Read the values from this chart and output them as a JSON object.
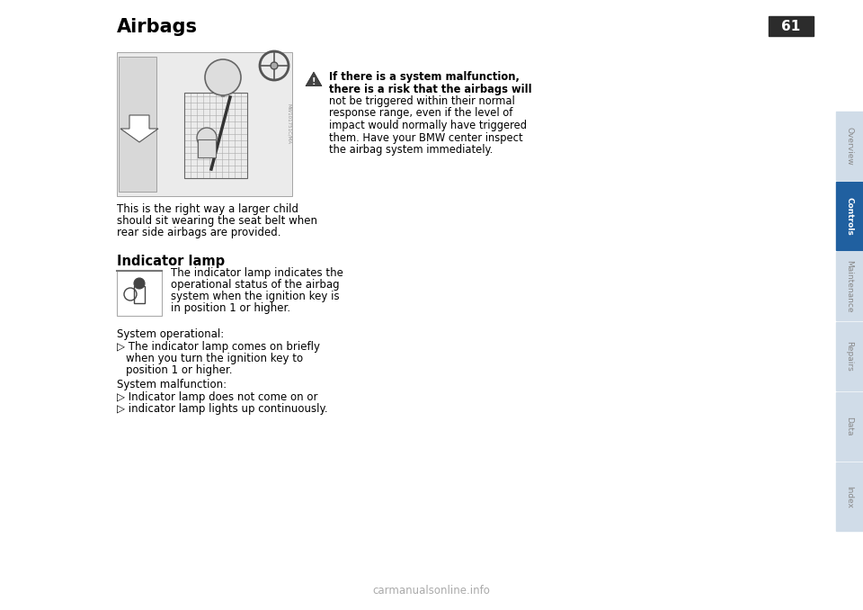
{
  "title": "Airbags",
  "page_number": "61",
  "background_color": "#ffffff",
  "title_fontsize": 15,
  "body_fontsize": 8.5,
  "sidebar_labels": [
    "Overview",
    "Controls",
    "Maintenance",
    "Repairs",
    "Data",
    "Index"
  ],
  "sidebar_active": 1,
  "sidebar_active_color": "#2060a0",
  "sidebar_inactive_color": "#d0dce8",
  "sidebar_active_text_color": "#ffffff",
  "sidebar_inactive_text_color": "#888888",
  "page_number_bg": "#2c2c2c",
  "page_number_color": "#ffffff",
  "warning_text_line1": "If there is a system malfunction,",
  "warning_text_line2": "there is a risk that the airbags will",
  "warning_text_line3": "not be triggered within their normal",
  "warning_text_line4": "response range, even if the level of",
  "warning_text_line5": "impact would normally have triggered",
  "warning_text_line6": "them. Have your BMW center inspect",
  "warning_text_line7": "the airbag system immediately.",
  "caption_line1": "This is the right way a larger child",
  "caption_line2": "should sit wearing the seat belt when",
  "caption_line3": "rear side airbags are provided.",
  "section_title": "Indicator lamp",
  "indicator_line1": "    The indicator lamp indicates the",
  "indicator_line2": "    operational status of the airbag",
  "indicator_line3": "    system when the ignition key is",
  "indicator_line4": "in position 1 or higher.",
  "sys_op_label": "System operational:",
  "sys_op_bullet": "▷ The indicator lamp comes on briefly",
  "sys_op_sub1": "   when you turn the ignition key to",
  "sys_op_sub2": "   position 1 or higher.",
  "sys_mal_label": "System malfunction:",
  "sys_mal_bullet1": "▷ Indicator lamp does not come on or",
  "sys_mal_bullet2": "▷ indicator lamp lights up continuously.",
  "watermark": "carmanualsonline.info",
  "watermark_color": "#aaaaaa",
  "img_watermark": "MW101751C/MA"
}
